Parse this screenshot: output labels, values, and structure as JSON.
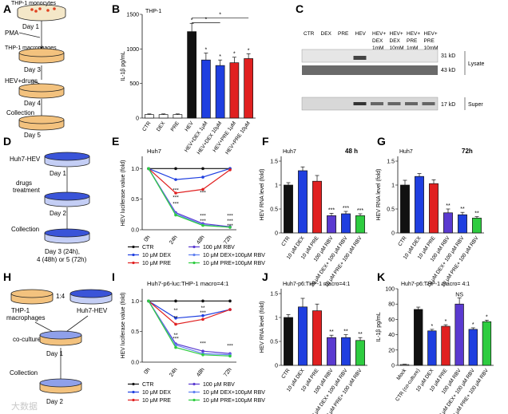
{
  "figure": {
    "panel_labels": [
      "A",
      "B",
      "C",
      "D",
      "E",
      "F",
      "G",
      "H",
      "I",
      "J",
      "K"
    ],
    "watermark": "大数据"
  },
  "panel_a": {
    "steps": [
      "THP-1 monocytes",
      "Day 1",
      "PMA",
      "THP-1 macrophages",
      "Day 3",
      "HEV+drugs",
      "Day 4",
      "Collection",
      "Day 5"
    ]
  },
  "panel_d": {
    "steps": [
      "Huh7-HEV",
      "Day 1",
      "drugs",
      "treatment",
      "Day 2",
      "Collection",
      "Day 3 (24h),",
      "4 (48h) or 5 (72h)"
    ]
  },
  "panel_h": {
    "steps": [
      "THP-1",
      "macrophages",
      "Huh7-HEV",
      "1:4",
      "co-culture",
      "Day 1",
      "Collection",
      "Day 2"
    ]
  },
  "panel_c": {
    "lanes": [
      "CTR",
      "DEX",
      "PRE",
      "HEV",
      "HEV+\nDEX\n1mM",
      "HEV+\nDEX\n10mM",
      "HEV+\nPRE\n1mM",
      "HEV+\nPRE\n10mM"
    ],
    "band_labels": [
      "31 kD",
      "43 kD",
      "17 kD"
    ],
    "group_labels": [
      "Lysate",
      "Super"
    ]
  },
  "colors": {
    "black": "#111111",
    "blue": "#1f3fe0",
    "red": "#e02020",
    "green": "#2ecc40",
    "purple": "#5a3ad0",
    "hev_blue": "#2c4bd8",
    "orange": "#e8a13a"
  },
  "chart_data": [
    {
      "id": "B",
      "type": "bar",
      "title": "THP-1",
      "ylabel": "IL-1β pg/mL",
      "ylim": [
        0,
        1500
      ],
      "yticks": [
        0,
        500,
        1000,
        1500
      ],
      "categories": [
        "CTR",
        "DEX",
        "PRE",
        "HEV",
        "HEV+DEX 1μM",
        "HEV+DEX 10μM",
        "HEV+PRE 1μM",
        "HEV+PRE 10μM"
      ],
      "values": [
        50,
        50,
        50,
        1250,
        840,
        760,
        800,
        860
      ],
      "errors": [
        10,
        10,
        10,
        120,
        100,
        80,
        80,
        70
      ],
      "colors": [
        "white",
        "white",
        "white",
        "black",
        "blue",
        "blue",
        "red",
        "red"
      ],
      "sig_marks": [
        "",
        "",
        "",
        "*",
        "*",
        "*",
        "*",
        "*"
      ],
      "brackets": [
        "*",
        "*"
      ]
    },
    {
      "id": "E",
      "type": "line",
      "title": "Huh7",
      "ylabel": "HEV luciferase value (fold)",
      "xlabel": "",
      "x": [
        "0h",
        "24h",
        "48h",
        "72h"
      ],
      "ylim": [
        0,
        1.2
      ],
      "yticks": [
        0,
        0.5,
        1.0
      ],
      "series": [
        {
          "name": "CTR",
          "color": "#111111",
          "values": [
            1.0,
            1.0,
            1.0,
            1.0
          ]
        },
        {
          "name": "10 μM DEX",
          "color": "#1f3fe0",
          "values": [
            1.0,
            0.82,
            0.86,
            1.0
          ]
        },
        {
          "name": "10 μM PRE",
          "color": "#e02020",
          "values": [
            1.0,
            0.6,
            0.66,
            0.98
          ]
        },
        {
          "name": "100 μM RBV",
          "color": "#5a3ad0",
          "values": [
            1.0,
            0.28,
            0.1,
            0.05
          ]
        },
        {
          "name": "10 μM DEX+100μM RBV",
          "color": "#6080f0",
          "values": [
            1.0,
            0.26,
            0.08,
            0.04
          ]
        },
        {
          "name": "10 μM PRE+100μM RBV",
          "color": "#2ecc40",
          "values": [
            1.0,
            0.24,
            0.07,
            0.04
          ]
        }
      ],
      "annotations": [
        "***",
        "***",
        "***",
        "***",
        "***",
        "***",
        "***",
        "***",
        "***"
      ]
    },
    {
      "id": "F",
      "type": "bar",
      "title": "48 h",
      "subtitle": "Huh7",
      "ylabel": "HEV RNA level (fold)",
      "ylim": [
        0,
        1.6
      ],
      "yticks": [
        0,
        0.5,
        1.0,
        1.5
      ],
      "categories": [
        "CTR",
        "10 μM DEX",
        "10 μM PRE",
        "100 μM RBV",
        "10 μM DEX+ 100 μM RBV",
        "10 μM PRE+ 100 μM RBV"
      ],
      "values": [
        1.0,
        1.3,
        1.08,
        0.36,
        0.4,
        0.36
      ],
      "errors": [
        0.05,
        0.08,
        0.12,
        0.05,
        0.05,
        0.04
      ],
      "colors": [
        "black",
        "blue",
        "red",
        "purple",
        "blue",
        "green"
      ],
      "sig_marks": [
        "",
        "",
        "",
        "***",
        "***",
        "***"
      ]
    },
    {
      "id": "G",
      "type": "bar",
      "title": "72h",
      "subtitle": "Huh7",
      "ylabel": "HEV RNA level (fold)",
      "ylim": [
        0,
        1.6
      ],
      "yticks": [
        0,
        0.5,
        1.0,
        1.5
      ],
      "categories": [
        "CTR",
        "10 μM DEX",
        "10 μM PRE",
        "100 μM RBV",
        "10 μM DEX+ 100 μM RBV",
        "10 μM PRE+ 100 μM RBV"
      ],
      "values": [
        1.0,
        1.18,
        1.03,
        0.42,
        0.38,
        0.31
      ],
      "errors": [
        0.1,
        0.06,
        0.08,
        0.08,
        0.05,
        0.03
      ],
      "colors": [
        "black",
        "blue",
        "red",
        "purple",
        "blue",
        "green"
      ],
      "sig_marks": [
        "",
        "",
        "",
        "**",
        "**",
        "**"
      ]
    },
    {
      "id": "I",
      "type": "line",
      "title": "Huh7-p6-luc:THP-1 macro=4:1",
      "ylabel": "HEV luciferase value (fold)",
      "x": [
        "0h",
        "24h",
        "48h",
        "72h"
      ],
      "ylim": [
        0,
        1.2
      ],
      "yticks": [
        0,
        0.5,
        1.0
      ],
      "series": [
        {
          "name": "CTR",
          "color": "#111111",
          "values": [
            1.0,
            1.0,
            1.0,
            1.0
          ]
        },
        {
          "name": "10 μM DEX",
          "color": "#1f3fe0",
          "values": [
            1.0,
            0.72,
            0.76,
            0.86
          ]
        },
        {
          "name": "10 μM PRE",
          "color": "#e02020",
          "values": [
            1.0,
            0.62,
            0.7,
            0.86
          ]
        },
        {
          "name": "100 μM RBV",
          "color": "#5a3ad0",
          "values": [
            1.0,
            0.3,
            0.18,
            0.14
          ]
        },
        {
          "name": "10 μM DEX+100μM RBV",
          "color": "#6080f0",
          "values": [
            1.0,
            0.28,
            0.14,
            0.12
          ]
        },
        {
          "name": "10 μM PRE+100μM RBV",
          "color": "#2ecc40",
          "values": [
            1.0,
            0.24,
            0.12,
            0.1
          ]
        }
      ],
      "annotations": [
        "**",
        "**",
        "**",
        "***",
        "***",
        "**",
        "***",
        "***"
      ]
    },
    {
      "id": "J",
      "type": "bar",
      "title": "Huh7-p6:THP-1 macro=4:1",
      "ylabel": "HEV RNA level (fold)",
      "ylim": [
        0,
        1.6
      ],
      "yticks": [
        0,
        0.5,
        1.0,
        1.5
      ],
      "categories": [
        "CTR",
        "10 μM DEX",
        "10 μM PRE",
        "100 μM RBV",
        "10 μM DEX+ 100 μM RBV",
        "10 μM PRE+ 100 μM RBV"
      ],
      "values": [
        1.0,
        1.22,
        1.14,
        0.58,
        0.58,
        0.52
      ],
      "errors": [
        0.06,
        0.18,
        0.14,
        0.05,
        0.06,
        0.06
      ],
      "colors": [
        "black",
        "blue",
        "red",
        "purple",
        "blue",
        "green"
      ],
      "sig_marks": [
        "",
        "",
        "",
        "**",
        "**",
        "**"
      ]
    },
    {
      "id": "K",
      "type": "bar",
      "title": "Huh7-p6:THP-1 macro= 4:1",
      "ylabel": "IL-1β pg/mL",
      "ylim": [
        0,
        100
      ],
      "yticks": [
        0,
        20,
        40,
        60,
        80,
        100
      ],
      "categories": [
        "Mock",
        "CTR (co-culture)",
        "10 μM DEX",
        "10 μM PRE",
        "100 μM RBV",
        "10 μM DEX+ 100 μM RBV",
        "10 μM PRE+ 100 μM RBV"
      ],
      "values": [
        1,
        73,
        45,
        51,
        80,
        47,
        57
      ],
      "errors": [
        0.5,
        3,
        2,
        2,
        8,
        2,
        2
      ],
      "colors": [
        "white",
        "black",
        "blue",
        "red",
        "purple",
        "blue",
        "green"
      ],
      "sig_marks": [
        "",
        "",
        "*",
        "*",
        "NS",
        "*",
        "*"
      ]
    }
  ]
}
